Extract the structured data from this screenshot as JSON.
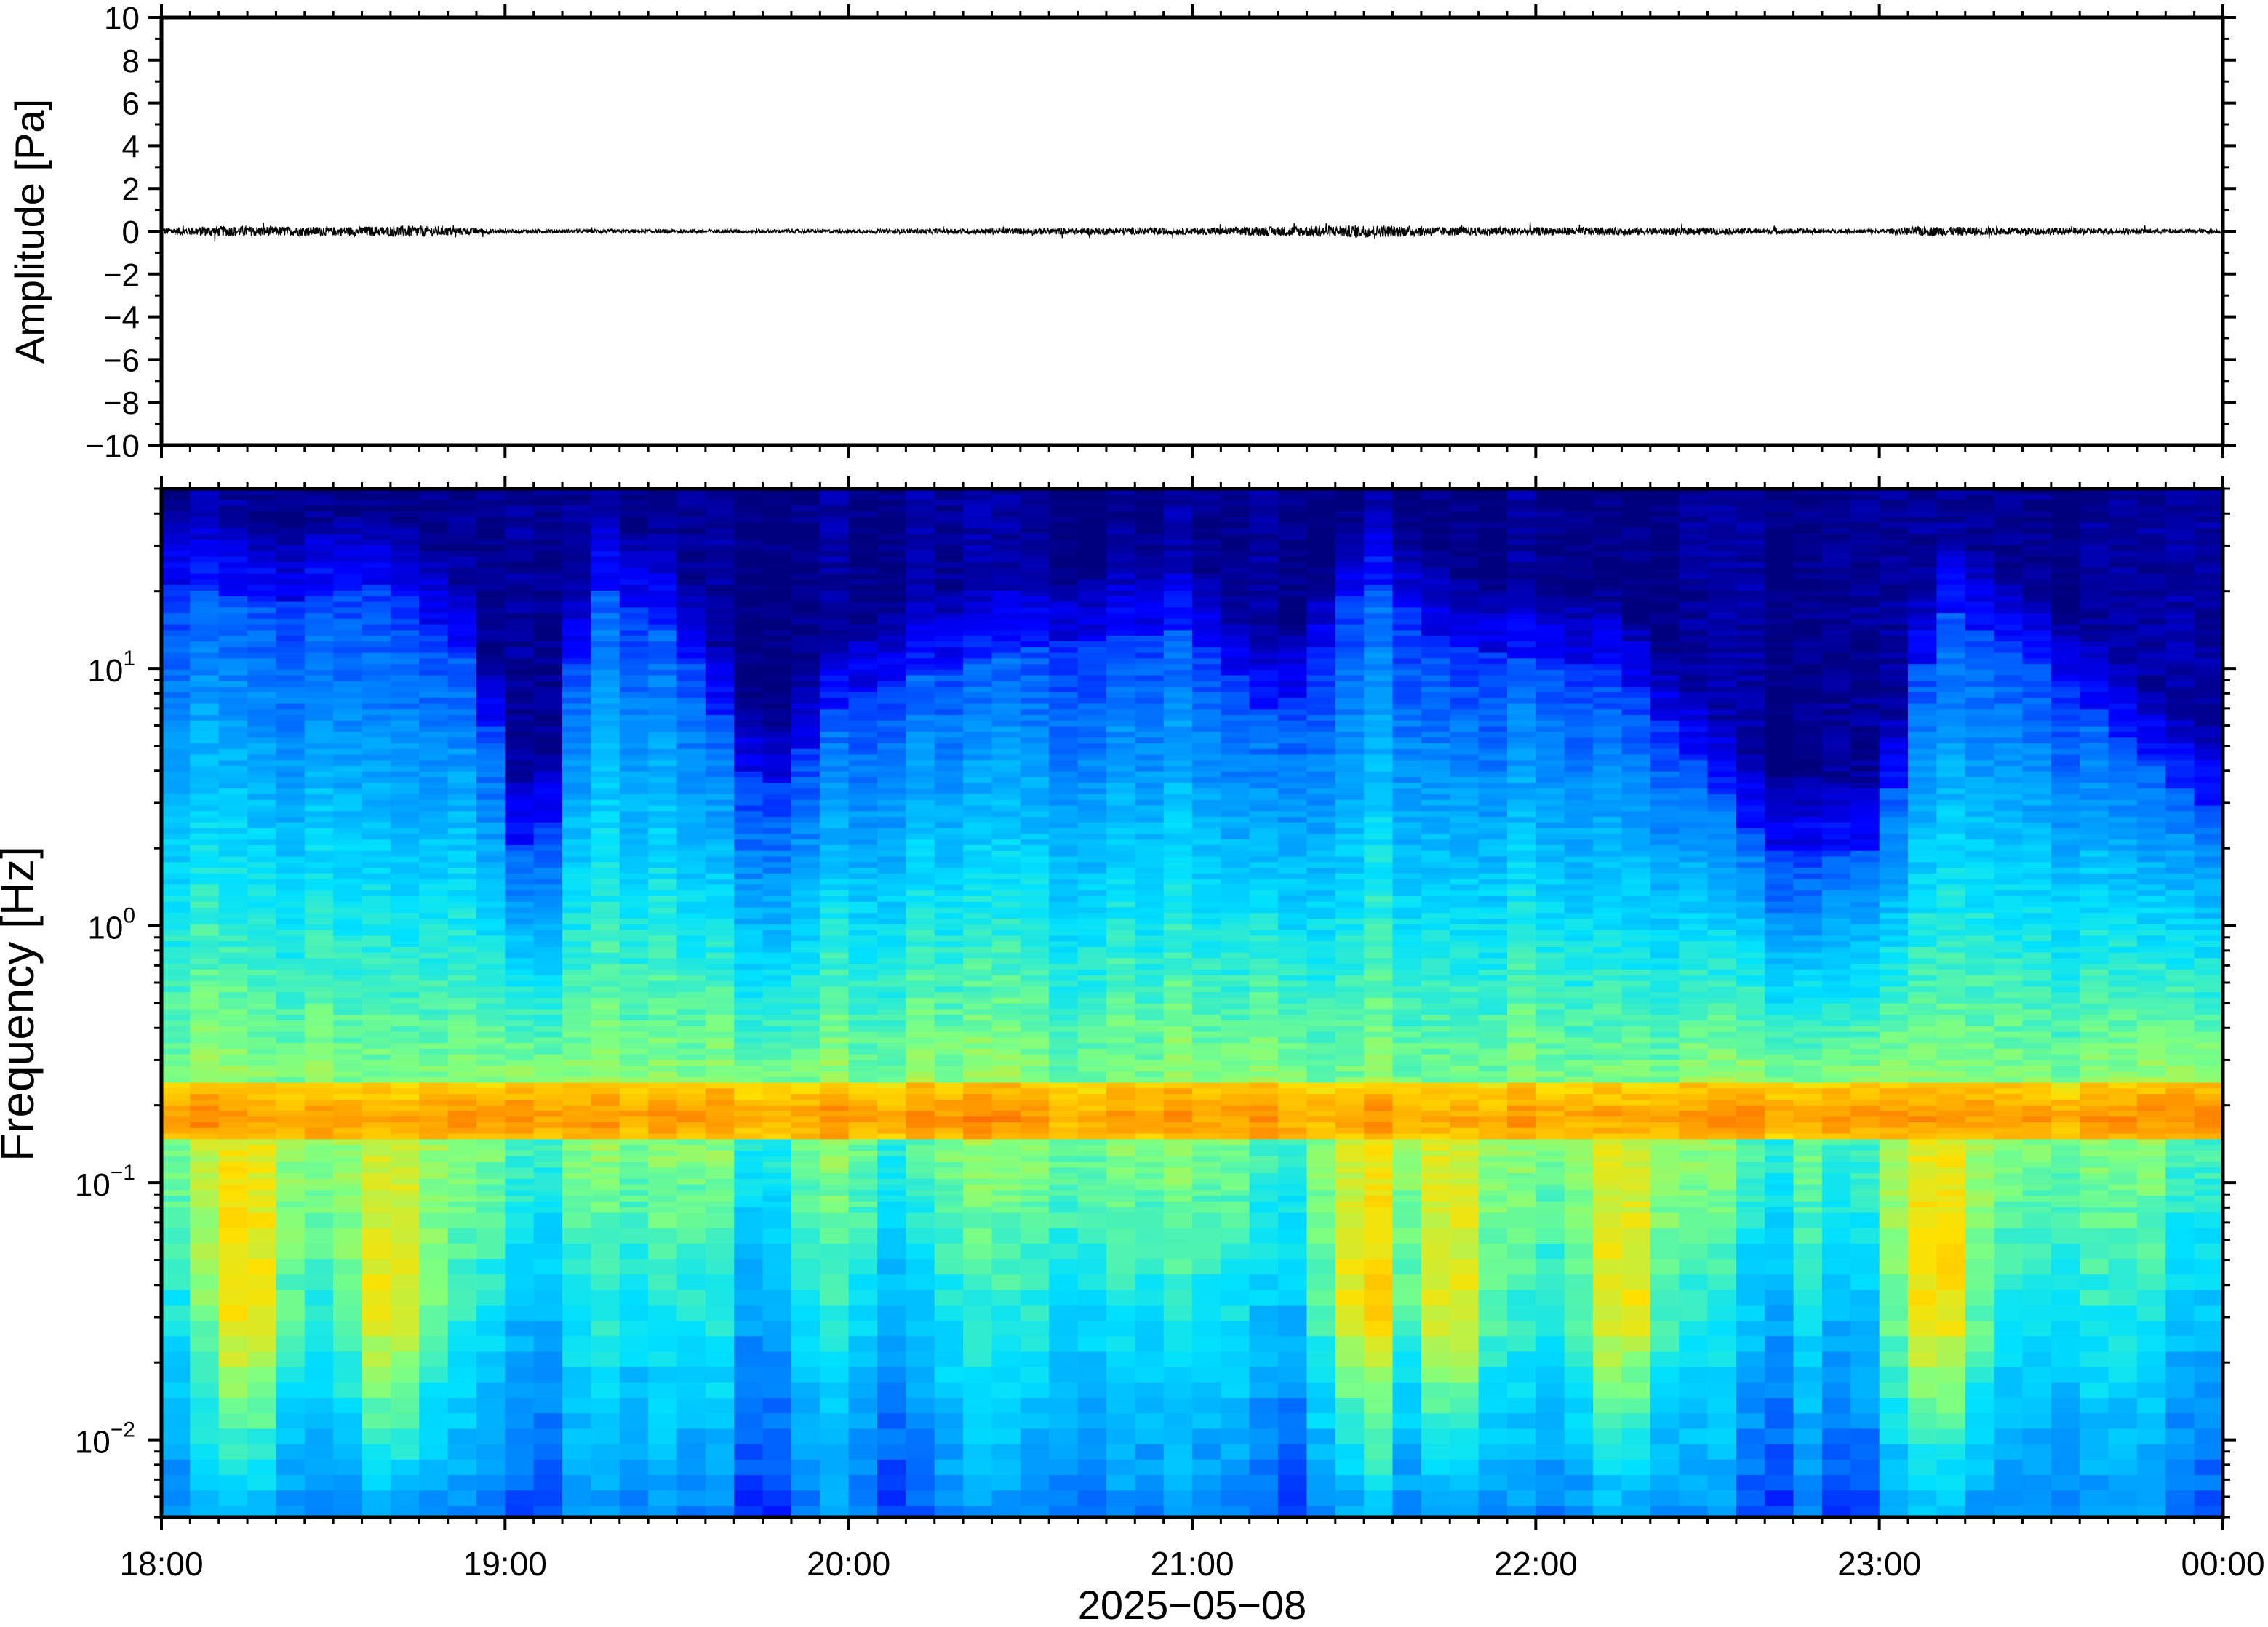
{
  "chart_data": [
    {
      "type": "line",
      "title": "",
      "xlabel": "",
      "ylabel": "Amplitude [Pa]",
      "ylim": [
        -10,
        10
      ],
      "yticks": [
        10,
        8,
        6,
        4,
        2,
        0,
        -2,
        -4,
        -6,
        -8,
        -10
      ],
      "ytick_labels": [
        "10",
        "8",
        "6",
        "4",
        "2",
        "0",
        "−2",
        "−4",
        "−6",
        "−8",
        "−10"
      ],
      "xlim": [
        "18:00",
        "00:00"
      ],
      "grid": false,
      "series": [
        {
          "x_unit": "hours since 18:00",
          "line_color": "#000000",
          "baseline": 0,
          "peak_abs_amplitude": [
            {
              "time": "18:00",
              "value": 0.35
            },
            {
              "time": "18:10",
              "value": 0.55
            },
            {
              "time": "18:30",
              "value": 0.45
            },
            {
              "time": "18:45",
              "value": 0.6
            },
            {
              "time": "19:00",
              "value": 0.2
            },
            {
              "time": "19:30",
              "value": 0.2
            },
            {
              "time": "20:00",
              "value": 0.2
            },
            {
              "time": "20:40",
              "value": 0.35
            },
            {
              "time": "21:00",
              "value": 0.35
            },
            {
              "time": "21:30",
              "value": 0.65
            },
            {
              "time": "21:45",
              "value": 0.45
            },
            {
              "time": "22:20",
              "value": 0.4
            },
            {
              "time": "23:00",
              "value": 0.2
            },
            {
              "time": "23:07",
              "value": 0.5
            },
            {
              "time": "00:00",
              "value": 0.2
            }
          ]
        }
      ]
    },
    {
      "type": "heatmap",
      "title": "",
      "xlabel": "2025−05−08",
      "ylabel": "Frequency [Hz]",
      "yscale": "log",
      "ylim": [
        0.005,
        50
      ],
      "yticks": [
        10,
        1,
        0.1,
        0.01
      ],
      "ytick_labels": [
        {
          "base": "10",
          "exp": "1"
        },
        {
          "base": "10",
          "exp": "0"
        },
        {
          "base": "10",
          "exp": "−1"
        },
        {
          "base": "10",
          "exp": "−2"
        }
      ],
      "xticks": [
        "18:00",
        "19:00",
        "20:00",
        "21:00",
        "22:00",
        "23:00",
        "00:00"
      ],
      "colormap": "jet",
      "colormap_colors": [
        "#00007f",
        "#0000ff",
        "#0080ff",
        "#00e0ff",
        "#7fff80",
        "#ffe000",
        "#ff8000",
        "#ff0000"
      ],
      "grid": false,
      "features": {
        "microbarom_band_hz": [
          0.15,
          0.25
        ],
        "microbarom_center_hz": 0.18,
        "microbarom_intensity": 0.72,
        "low_freq_enhancement_times": [
          "18:15",
          "18:40",
          "21:30",
          "21:45",
          "22:15",
          "23:10"
        ],
        "quiet_columns": [
          "19:05",
          "19:45",
          "20:10",
          "21:15",
          "22:40",
          "22:55",
          "23:55"
        ]
      },
      "upper_cutoff_hz_by_time": [
        {
          "time": "18:00",
          "value": 22
        },
        {
          "time": "18:20",
          "value": 18
        },
        {
          "time": "18:40",
          "value": 22
        },
        {
          "time": "18:55",
          "value": 10
        },
        {
          "time": "19:05",
          "value": 1.2
        },
        {
          "time": "19:15",
          "value": 22
        },
        {
          "time": "19:30",
          "value": 14
        },
        {
          "time": "19:45",
          "value": 3
        },
        {
          "time": "20:00",
          "value": 8
        },
        {
          "time": "20:30",
          "value": 12
        },
        {
          "time": "21:00",
          "value": 14
        },
        {
          "time": "21:15",
          "value": 6
        },
        {
          "time": "21:30",
          "value": 24
        },
        {
          "time": "21:45",
          "value": 12
        },
        {
          "time": "22:15",
          "value": 10
        },
        {
          "time": "22:40",
          "value": 2
        },
        {
          "time": "23:00",
          "value": 2
        },
        {
          "time": "23:10",
          "value": 18
        },
        {
          "time": "23:30",
          "value": 10
        },
        {
          "time": "23:55",
          "value": 3
        }
      ]
    }
  ]
}
